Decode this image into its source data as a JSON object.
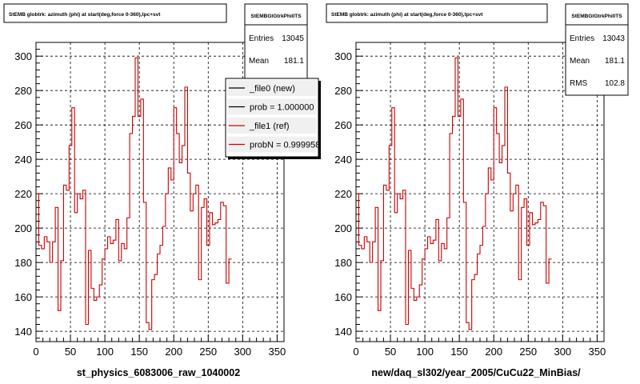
{
  "chart_data": [
    {
      "type": "histogram",
      "title": "StEMB globtrk: azimuth (phi) at start(deg,force 0-360),tpc+svt",
      "stats_box": {
        "name": "StEMBGlGtrkPhi0TS",
        "rows": [
          {
            "label": "Entries",
            "value": "13045"
          },
          {
            "label": "Mean",
            "value": "181.1"
          }
        ]
      },
      "legend": {
        "placement": "top-right",
        "entries": [
          {
            "label": "_file0 (new)",
            "color": "#000000"
          },
          {
            "label": "prob = 1.000000",
            "color": "#000000"
          },
          {
            "label": "_file1 (ref)",
            "color": "#cc0000"
          },
          {
            "label": "probN = 0.999958",
            "color": "#cc0000"
          }
        ]
      },
      "xlabel": "st_physics_6083006_raw_1040002",
      "xlim": [
        0,
        360
      ],
      "ylim": [
        134,
        308
      ],
      "xticks": [
        0,
        50,
        100,
        150,
        200,
        250,
        300,
        350
      ],
      "yticks": [
        140,
        160,
        180,
        200,
        220,
        240,
        260,
        280,
        300
      ],
      "grid": true,
      "line_color": "#cc0000",
      "bin_width": 4,
      "values": [
        220,
        190,
        188,
        195,
        192,
        180,
        192,
        212,
        152,
        181,
        225,
        222,
        248,
        270,
        209,
        220,
        217,
        222,
        144,
        187,
        165,
        158,
        160,
        167,
        182,
        188,
        195,
        191,
        193,
        205,
        181,
        191,
        188,
        206,
        255,
        265,
        299,
        265,
        275,
        215,
        145,
        141,
        170,
        173,
        185,
        190,
        201,
        220,
        235,
        228,
        270,
        255,
        238,
        248,
        282,
        232,
        210,
        220,
        225,
        170,
        212,
        217,
        190,
        209,
        202,
        203,
        205,
        215,
        213,
        168,
        182
      ]
    },
    {
      "type": "histogram",
      "title": "StEMB globtrk: azimuth (phi) at start(deg,force 0-360),tpc+svt",
      "stats_box": {
        "name": "StEMBGlGtrkPhi0TS",
        "rows": [
          {
            "label": "Entries",
            "value": "13043"
          },
          {
            "label": "Mean",
            "value": "181.1"
          },
          {
            "label": "RMS",
            "value": "102.8"
          }
        ]
      },
      "xlabel": "new/daq_sl302/year_2005/CuCu22_MinBias/",
      "xlim": [
        0,
        360
      ],
      "ylim": [
        134,
        308
      ],
      "xticks": [
        0,
        50,
        100,
        150,
        200,
        250,
        300,
        350
      ],
      "yticks": [
        140,
        160,
        180,
        200,
        220,
        240,
        260,
        280,
        300
      ],
      "grid": true,
      "line_color": "#cc0000",
      "bin_width": 4,
      "values": [
        220,
        190,
        188,
        195,
        192,
        180,
        192,
        212,
        152,
        181,
        225,
        222,
        248,
        270,
        209,
        220,
        217,
        222,
        144,
        187,
        165,
        158,
        160,
        167,
        182,
        188,
        195,
        191,
        193,
        205,
        181,
        191,
        188,
        206,
        255,
        265,
        299,
        265,
        275,
        215,
        145,
        141,
        170,
        173,
        185,
        190,
        201,
        220,
        235,
        228,
        270,
        255,
        238,
        248,
        282,
        232,
        210,
        220,
        225,
        170,
        212,
        217,
        190,
        209,
        202,
        203,
        205,
        215,
        213,
        168,
        182
      ]
    }
  ]
}
